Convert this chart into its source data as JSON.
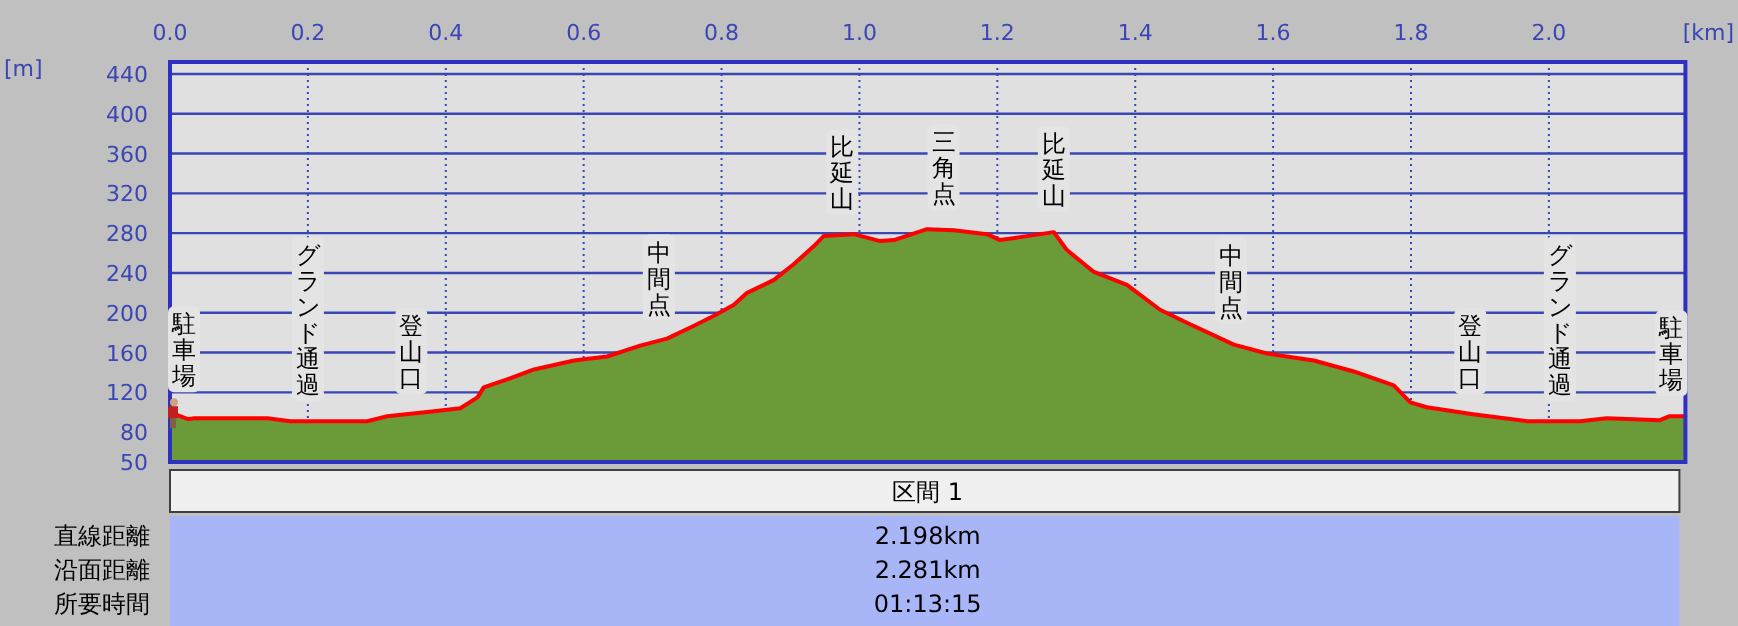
{
  "chart_data": {
    "type": "area",
    "xlabel": "[km]",
    "ylabel": "[m]",
    "x": [
      0,
      0.026,
      0.035,
      0.141,
      0.175,
      0.286,
      0.315,
      0.383,
      0.421,
      0.446,
      0.455,
      0.489,
      0.528,
      0.586,
      0.634,
      0.682,
      0.721,
      0.76,
      0.789,
      0.818,
      0.837,
      0.876,
      0.905,
      0.934,
      0.948,
      0.992,
      1.03,
      1.05,
      1.098,
      1.137,
      1.185,
      1.204,
      1.233,
      1.282,
      1.301,
      1.34,
      1.388,
      1.436,
      1.475,
      1.543,
      1.591,
      1.659,
      1.717,
      1.775,
      1.799,
      1.823,
      1.89,
      1.968,
      2.045,
      2.084,
      2.161,
      2.175,
      2.198
    ],
    "series": [
      {
        "color": "#6b9a38",
        "values": [
          100,
          93,
          94,
          94,
          91,
          91,
          96,
          101,
          104,
          115,
          125,
          133,
          143,
          152,
          156,
          167,
          174,
          187,
          197,
          208,
          220,
          233,
          249,
          267,
          277,
          279,
          272,
          273,
          284,
          283,
          279,
          273,
          276,
          281,
          263,
          241,
          228,
          203,
          190,
          168,
          159,
          152,
          141,
          127,
          110,
          105,
          98,
          91,
          91,
          94,
          92,
          96,
          96
        ]
      },
      {
        "type": "line",
        "color": "#ff0000",
        "values": [
          100,
          93,
          94,
          94,
          91,
          91,
          96,
          101,
          104,
          115,
          125,
          133,
          143,
          152,
          156,
          167,
          174,
          187,
          197,
          208,
          220,
          233,
          249,
          267,
          277,
          279,
          272,
          273,
          284,
          283,
          279,
          273,
          276,
          281,
          263,
          241,
          228,
          203,
          190,
          168,
          159,
          152,
          141,
          127,
          110,
          105,
          98,
          91,
          91,
          94,
          92,
          96,
          96
        ]
      }
    ],
    "xlim": [
      0,
      2.198
    ],
    "ylim": [
      50,
      452
    ],
    "xticks": [
      {
        "value": 0,
        "label": "0.0"
      },
      0.2,
      0.4,
      0.6,
      0.8,
      {
        "value": 1,
        "label": "1.0"
      },
      1.2,
      1.4,
      1.6,
      1.8,
      {
        "value": 2,
        "label": "2.0"
      }
    ],
    "yticks": [
      50,
      80,
      120,
      160,
      200,
      240,
      280,
      320,
      360,
      400,
      440
    ],
    "grid": true,
    "annotations": [
      {
        "text": "駐車場",
        "x": 0,
        "y": 100
      },
      {
        "text": "グランド通過",
        "x": 0.2,
        "y": 91
      },
      {
        "text": "登山口",
        "x": 0.35,
        "y": 98
      },
      {
        "text": "中間点",
        "x": 0.709,
        "y": 172
      },
      {
        "text": "比延山",
        "x": 0.975,
        "y": 278
      },
      {
        "text": "三角点",
        "x": 1.122,
        "y": 283
      },
      {
        "text": "比延山",
        "x": 1.282,
        "y": 281
      },
      {
        "text": "中間点",
        "x": 1.539,
        "y": 169
      },
      {
        "text": "登山口",
        "x": 1.886,
        "y": 98
      },
      {
        "text": "グランド通過",
        "x": 2.016,
        "y": 91
      },
      {
        "text": "駐車場",
        "x": 2.198,
        "y": 96
      },
      "区間 1",
      "直線距離",
      "2.198km",
      "沿面距離",
      "2.281km",
      "所要時間",
      "01:13:15"
    ]
  }
}
